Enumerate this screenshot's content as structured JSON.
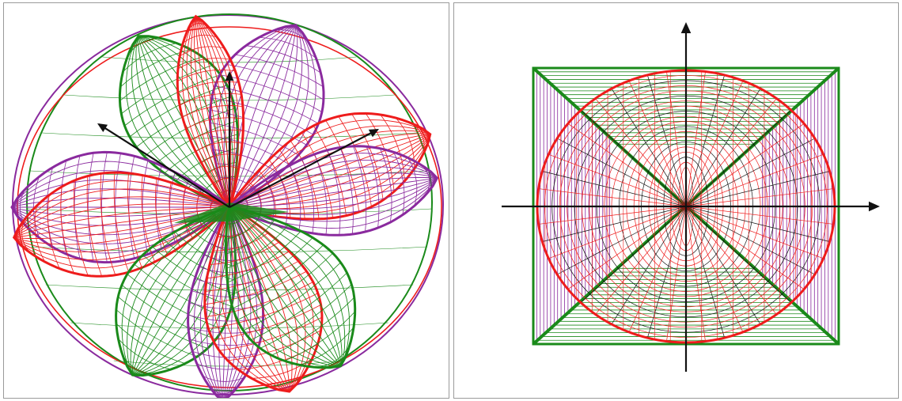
{
  "colors": {
    "red": "#ee1c1c",
    "green": "#1a8a1a",
    "purple": "#8a2a9e",
    "black": "#111111",
    "background": "#ffffff",
    "border": "#9a9a9a"
  },
  "panels": [
    {
      "name": "perspective-view",
      "content": "wireframe-lobed-surfaces"
    },
    {
      "name": "front-view",
      "content": "wireframe-cross-section-with-axes"
    }
  ]
}
